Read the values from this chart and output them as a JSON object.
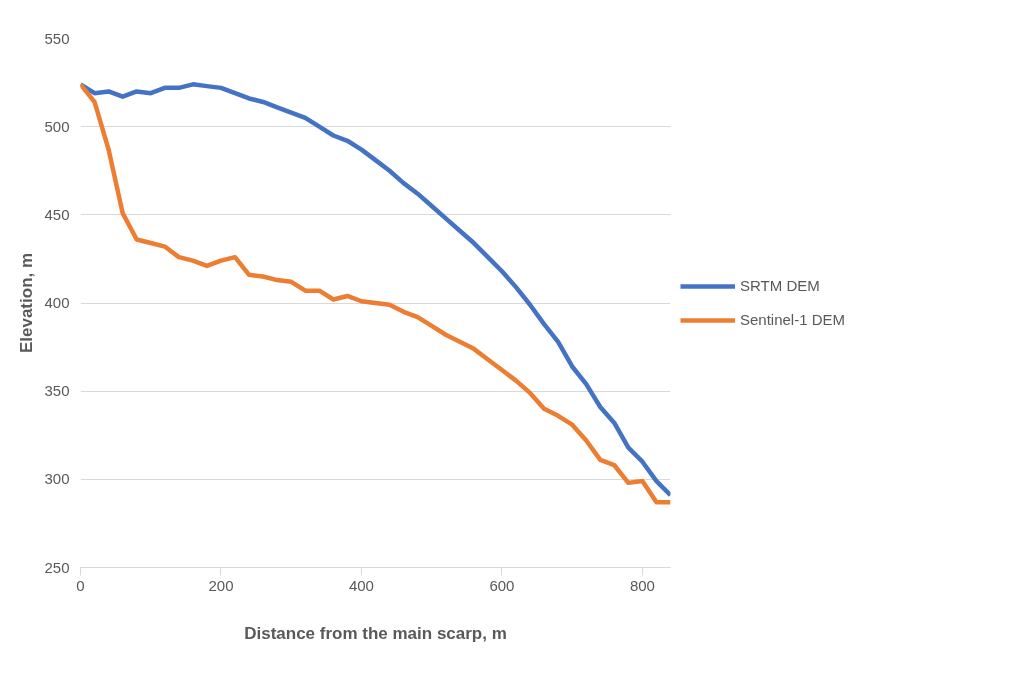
{
  "chart_data": {
    "type": "line",
    "xlabel": "Distance from the main scarp, m",
    "ylabel": "Elevation, m",
    "x": [
      0,
      20,
      40,
      60,
      80,
      100,
      120,
      140,
      160,
      180,
      200,
      220,
      240,
      260,
      280,
      300,
      320,
      340,
      360,
      380,
      400,
      420,
      440,
      460,
      480,
      500,
      520,
      540,
      560,
      580,
      600,
      620,
      640,
      660,
      680,
      700,
      720,
      740,
      760,
      780,
      800,
      820,
      840
    ],
    "series": [
      {
        "name": "SRTM DEM",
        "color": "#4472c4",
        "values": [
          524,
          519,
          520,
          517,
          520,
          519,
          522,
          522,
          524,
          523,
          522,
          519,
          516,
          514,
          511,
          508,
          505,
          500,
          495,
          492,
          487,
          481,
          475,
          468,
          462,
          455,
          448,
          441,
          434,
          426,
          418,
          409,
          399,
          388,
          378,
          364,
          354,
          341,
          332,
          318,
          310,
          299,
          291
        ]
      },
      {
        "name": "Sentinel-1 DEM",
        "color": "#ed7d31",
        "values": [
          524,
          514,
          487,
          451,
          436,
          434,
          432,
          426,
          424,
          421,
          424,
          426,
          416,
          415,
          413,
          412,
          407,
          407,
          402,
          404,
          401,
          400,
          399,
          395,
          392,
          387,
          382,
          378,
          374,
          368,
          362,
          356,
          349,
          340,
          336,
          331,
          322,
          311,
          308,
          298,
          299,
          287,
          287
        ]
      }
    ],
    "xlim": [
      0,
      840
    ],
    "xticks": [
      0,
      200,
      400,
      600,
      800
    ],
    "ylim": [
      250,
      550
    ],
    "yticks": [
      250,
      300,
      350,
      400,
      450,
      500,
      550
    ],
    "grid": "y",
    "legend": "right",
    "marker": "none",
    "line_style": "solid"
  }
}
